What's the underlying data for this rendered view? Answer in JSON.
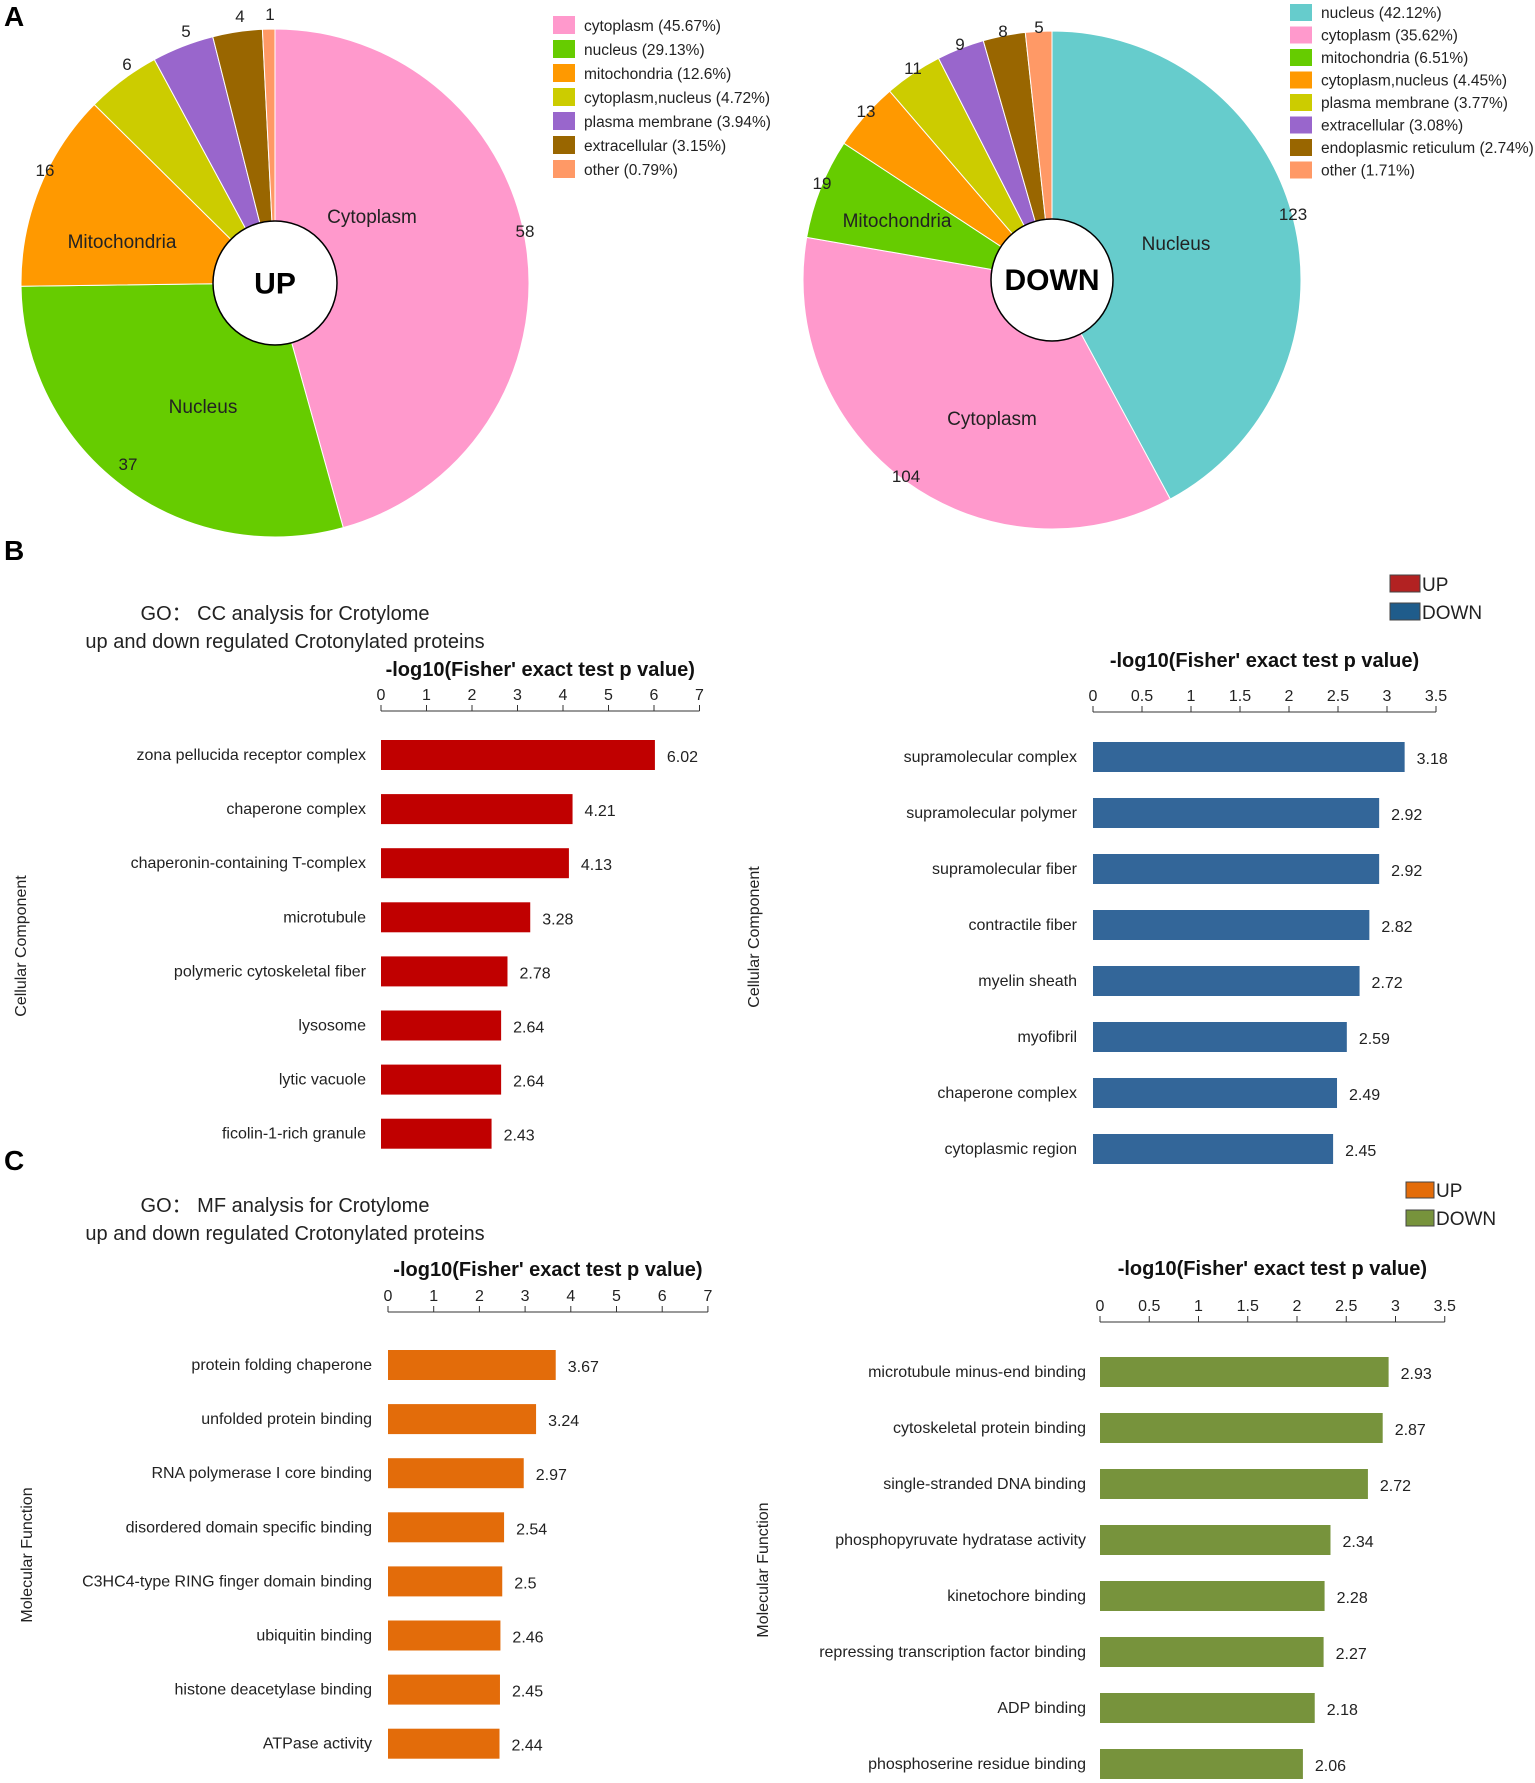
{
  "panels": {
    "a": "A",
    "b": "B",
    "c": "C"
  },
  "chart_data": [
    {
      "id": "pie_up",
      "type": "pie",
      "center_label": "UP",
      "slices": [
        {
          "label": "cytoplasm",
          "percent": 45.67,
          "count": 58,
          "color": "#FF99CC",
          "legend": "cytoplasm (45.67%)",
          "inner_label": "Cytoplasm"
        },
        {
          "label": "nucleus",
          "percent": 29.13,
          "count": 37,
          "color": "#66CC00",
          "legend": "nucleus (29.13%)",
          "inner_label": "Nucleus"
        },
        {
          "label": "mitochondria",
          "percent": 12.6,
          "count": 16,
          "color": "#FF9900",
          "legend": "mitochondria (12.6%)",
          "inner_label": "Mitochondria"
        },
        {
          "label": "cytoplasm,nucleus",
          "percent": 4.72,
          "count": 6,
          "color": "#CCCC00",
          "legend": "cytoplasm,nucleus (4.72%)",
          "inner_label": ""
        },
        {
          "label": "plasma membrane",
          "percent": 3.94,
          "count": 5,
          "color": "#9966CC",
          "legend": "plasma membrane (3.94%)",
          "inner_label": ""
        },
        {
          "label": "extracellular",
          "percent": 3.15,
          "count": 4,
          "color": "#996600",
          "legend": "extracellular (3.15%)",
          "inner_label": ""
        },
        {
          "label": "other",
          "percent": 0.79,
          "count": 1,
          "color": "#FF9966",
          "legend": "other (0.79%)",
          "inner_label": ""
        }
      ]
    },
    {
      "id": "pie_down",
      "type": "pie",
      "center_label": "DOWN",
      "slices": [
        {
          "label": "nucleus",
          "percent": 42.12,
          "count": 123,
          "color": "#66CCCC",
          "legend": "nucleus (42.12%)",
          "inner_label": "Nucleus"
        },
        {
          "label": "cytoplasm",
          "percent": 35.62,
          "count": 104,
          "color": "#FF99CC",
          "legend": "cytoplasm (35.62%)",
          "inner_label": "Cytoplasm"
        },
        {
          "label": "mitochondria",
          "percent": 6.51,
          "count": 19,
          "color": "#66CC00",
          "legend": "mitochondria (6.51%)",
          "inner_label": "Mitochondria"
        },
        {
          "label": "cytoplasm,nucleus",
          "percent": 4.45,
          "count": 13,
          "color": "#FF9900",
          "legend": "cytoplasm,nucleus (4.45%)",
          "inner_label": ""
        },
        {
          "label": "plasma membrane",
          "percent": 3.77,
          "count": 11,
          "color": "#CCCC00",
          "legend": "plasma membrane (3.77%)",
          "inner_label": ""
        },
        {
          "label": "extracellular",
          "percent": 3.08,
          "count": 9,
          "color": "#9966CC",
          "legend": "extracellular (3.08%)",
          "inner_label": ""
        },
        {
          "label": "endoplasmic reticulum",
          "percent": 2.74,
          "count": 8,
          "color": "#996600",
          "legend": "endoplasmic reticulum (2.74%)",
          "inner_label": ""
        },
        {
          "label": "other",
          "percent": 1.71,
          "count": 5,
          "color": "#FF9966",
          "legend": "other (1.71%)",
          "inner_label": ""
        }
      ]
    },
    {
      "id": "cc_up",
      "type": "bar",
      "orientation": "horizontal",
      "title": [
        "GO： CC  analysis for Crotylome",
        "up and down regulated Crotonylated proteins"
      ],
      "xlabel": "-log10(Fisher' exact test p value)",
      "ylabel": "Cellular Component",
      "xlim": [
        0,
        7
      ],
      "ticks": [
        "0",
        "1",
        "2",
        "3",
        "4",
        "5",
        "6",
        "7"
      ],
      "color": "#C00000",
      "categories": [
        "zona pellucida receptor complex",
        "chaperone complex",
        "chaperonin-containing T-complex",
        "microtubule",
        "polymeric cytoskeletal fiber",
        "lysosome",
        "lytic vacuole",
        "ficolin-1-rich granule"
      ],
      "values": [
        6.02,
        4.21,
        4.13,
        3.28,
        2.78,
        2.64,
        2.64,
        2.43
      ],
      "value_labels": [
        "6.02",
        "4.21",
        "4.13",
        "3.28",
        "2.78",
        "2.64",
        "2.64",
        "2.43"
      ]
    },
    {
      "id": "cc_down",
      "type": "bar",
      "orientation": "horizontal",
      "xlabel": "-log10(Fisher' exact test p value)",
      "ylabel": "Cellular Component",
      "xlim": [
        0,
        3.5
      ],
      "ticks": [
        "0",
        "0.5",
        "1",
        "1.5",
        "2",
        "2.5",
        "3",
        "3.5"
      ],
      "color": "#336699",
      "legend": [
        {
          "label": "UP",
          "color": "#B22222"
        },
        {
          "label": "DOWN",
          "color": "#1F5C8B"
        }
      ],
      "categories": [
        "supramolecular complex",
        "supramolecular polymer",
        "supramolecular fiber",
        "contractile fiber",
        "myelin sheath",
        "myofibril",
        "chaperone complex",
        "cytoplasmic region"
      ],
      "values": [
        3.18,
        2.92,
        2.92,
        2.82,
        2.72,
        2.59,
        2.49,
        2.45
      ],
      "value_labels": [
        "3.18",
        "2.92",
        "2.92",
        "2.82",
        "2.72",
        "2.59",
        "2.49",
        "2.45"
      ]
    },
    {
      "id": "mf_up",
      "type": "bar",
      "orientation": "horizontal",
      "title": [
        "GO： MF  analysis for Crotylome",
        "up and down regulated Crotonylated proteins"
      ],
      "xlabel": "-log10(Fisher' exact test p value)",
      "ylabel": "Molecular Function",
      "xlim": [
        0,
        7
      ],
      "ticks": [
        "0",
        "1",
        "2",
        "3",
        "4",
        "5",
        "6",
        "7"
      ],
      "color": "#E36C0A",
      "categories": [
        "protein folding chaperone",
        "unfolded protein binding",
        "RNA polymerase I core binding",
        "disordered domain specific binding",
        "C3HC4-type RING finger domain binding",
        "ubiquitin binding",
        "histone deacetylase binding",
        "ATPase activity"
      ],
      "values": [
        3.67,
        3.24,
        2.97,
        2.54,
        2.5,
        2.46,
        2.45,
        2.44
      ],
      "value_labels": [
        "3.67",
        "3.24",
        "2.97",
        "2.54",
        "2.5",
        "2.46",
        "2.45",
        "2.44"
      ]
    },
    {
      "id": "mf_down",
      "type": "bar",
      "orientation": "horizontal",
      "xlabel": "-log10(Fisher' exact test p value)",
      "ylabel": "Molecular Function",
      "xlim": [
        0,
        3.5
      ],
      "ticks": [
        "0",
        "0.5",
        "1",
        "1.5",
        "2",
        "2.5",
        "3",
        "3.5"
      ],
      "color": "#77933C",
      "legend": [
        {
          "label": "UP",
          "color": "#E36C0A"
        },
        {
          "label": "DOWN",
          "color": "#77933C"
        }
      ],
      "categories": [
        "microtubule minus-end binding",
        "cytoskeletal protein binding",
        "single-stranded DNA binding",
        "phosphopyruvate hydratase activity",
        "kinetochore binding",
        "repressing transcription factor binding",
        "ADP binding",
        "phosphoserine residue binding"
      ],
      "values": [
        2.93,
        2.87,
        2.72,
        2.34,
        2.28,
        2.27,
        2.18,
        2.06
      ],
      "value_labels": [
        "2.93",
        "2.87",
        "2.72",
        "2.34",
        "2.28",
        "2.27",
        "2.18",
        "2.06"
      ]
    }
  ]
}
